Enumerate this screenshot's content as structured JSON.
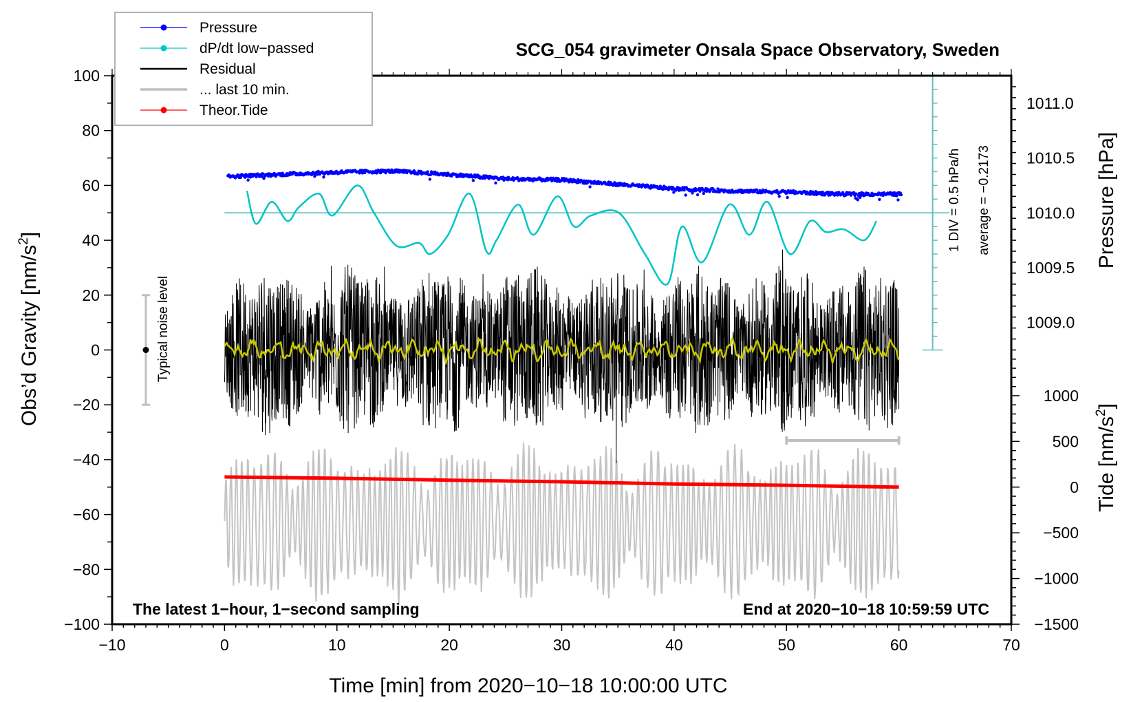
{
  "chart_data": {
    "type": "line",
    "title": "SCG_054 gravimeter Onsala Space Observatory, Sweden",
    "xlabel": "Time [min] from 2020−10−18 10:00:00 UTC",
    "ylabel_left": "Obs’d Gravity [nm/s²]",
    "ylabel_left_main": "Obs’d Gravity [nm/s",
    "ylabel_left_sup": "2",
    "ylabel_left_close": "]",
    "ylabel_right_pressure": "Pressure [hPa]",
    "ylabel_right_tide_main": "Tide [nm/s",
    "ylabel_right_tide_sup": "2",
    "ylabel_right_tide_close": "]",
    "xlim": [
      -10,
      70
    ],
    "ylim": [
      -100,
      100
    ],
    "x_ticks": [
      -10,
      0,
      10,
      20,
      30,
      40,
      50,
      60,
      70
    ],
    "x_tick_labels": [
      "−10",
      "0",
      "10",
      "20",
      "30",
      "40",
      "50",
      "60",
      "70"
    ],
    "y_ticks": [
      100,
      80,
      60,
      40,
      20,
      0,
      -20,
      -40,
      -60,
      -80,
      -100
    ],
    "y_tick_labels": [
      "100",
      "80",
      "60",
      "40",
      "20",
      "0",
      "−20",
      "−40",
      "−60",
      "−80",
      "−100"
    ],
    "pressure_axis": {
      "ticks": [
        1011.0,
        1010.5,
        1010.0,
        1009.5,
        1009.0
      ],
      "tick_labels": [
        "1011.0",
        "1010.5",
        "1010.0",
        "1009.5",
        "1009.0"
      ],
      "gravity_equiv_at_1010": 50,
      "hpa_per_gravity_unit": 0.025
    },
    "tide_axis": {
      "ticks": [
        1000,
        500,
        0,
        -500,
        -1000,
        -1500
      ],
      "tick_labels": [
        "1000",
        "500",
        "0",
        "−500",
        "−1000",
        "−1500"
      ],
      "gravity_equiv_at_0": -50,
      "tide_per_gravity_unit": 30
    },
    "dpdt_scale": {
      "label_div": "1 DIV = 0.5 hPa/h",
      "label_avg": "average = −0.2173",
      "baseline_gravity": 50,
      "top_gravity": 100,
      "bottom_gravity": 0
    },
    "legend": {
      "position": "top-left",
      "entries": [
        {
          "label": "Pressure",
          "color": "#0000ff",
          "marker": "dot"
        },
        {
          "label": "dP/dt low−passed",
          "color": "#00c8c8",
          "marker": "dot"
        },
        {
          "label": "Residual",
          "color": "#000000",
          "marker": "line"
        },
        {
          "label": "... last 10 min.",
          "color": "#c0c0c0",
          "marker": "line"
        },
        {
          "label": "Theor.Tide",
          "color": "#ff0000",
          "marker": "dot"
        }
      ]
    },
    "series": [
      {
        "name": "Pressure",
        "color": "#0000ff",
        "unit": "hPa",
        "x": [
          0,
          5,
          10,
          15,
          20,
          25,
          30,
          35,
          40,
          45,
          50,
          55,
          60
        ],
        "values": [
          1010.33,
          1010.35,
          1010.37,
          1010.38,
          1010.35,
          1010.31,
          1010.3,
          1010.26,
          1010.22,
          1010.2,
          1010.19,
          1010.17,
          1010.17
        ]
      },
      {
        "name": "dP/dt low-passed",
        "color": "#00c8c8",
        "unit": "gravity-axis units",
        "x": [
          2,
          2.8,
          4.2,
          5.6,
          6.6,
          8.4,
          9.6,
          11.8,
          13.3,
          15.3,
          17.3,
          18.3,
          19.9,
          21.8,
          23.3,
          24.2,
          26.1,
          27.5,
          29.6,
          31.1,
          32.6,
          35.1,
          37.4,
          39.4,
          40.7,
          42.5,
          44.9,
          46.7,
          48.3,
          50.3,
          52.1,
          53.5,
          55.1,
          56.9,
          58.0
        ],
        "values": [
          58,
          46,
          54,
          47,
          52,
          57,
          49,
          60,
          50,
          38,
          39,
          35,
          42,
          57,
          36,
          40,
          53,
          42,
          56,
          45,
          49,
          50,
          35,
          24,
          45,
          32,
          53,
          42,
          54,
          35,
          47,
          43,
          44,
          40,
          47
        ]
      },
      {
        "name": "Residual",
        "color": "#000000",
        "x_range": [
          0,
          60
        ],
        "amplitude_approx": 30,
        "note": "1-second sampled noise, ~±30 nm/s² envelope"
      },
      {
        "name": "Residual smoothed",
        "color": "#c8c800",
        "x_range": [
          0,
          60
        ],
        "amplitude_approx": 3
      },
      {
        "name": "... last 10 min.",
        "color": "#c0c0c0",
        "x_range": [
          0,
          60
        ],
        "center_gravity": -63,
        "amplitude_approx": 25
      },
      {
        "name": "Theor.Tide",
        "color": "#ff0000",
        "unit": "nm/s²",
        "x": [
          0,
          10,
          20,
          30,
          40,
          50,
          60
        ],
        "values": [
          111,
          97,
          76,
          58,
          34,
          20,
          0
        ]
      }
    ],
    "noise_level": {
      "label": "Typical noise level",
      "x": -7,
      "center": 0,
      "range": [
        -20,
        20
      ]
    },
    "last10_bracket": {
      "x_range": [
        50,
        60
      ],
      "gravity": -33
    },
    "annotations": {
      "bottom_left": "The latest 1−hour, 1−second sampling",
      "bottom_right": "End at 2020−10−18 10:59:59 UTC"
    },
    "grid": false
  }
}
